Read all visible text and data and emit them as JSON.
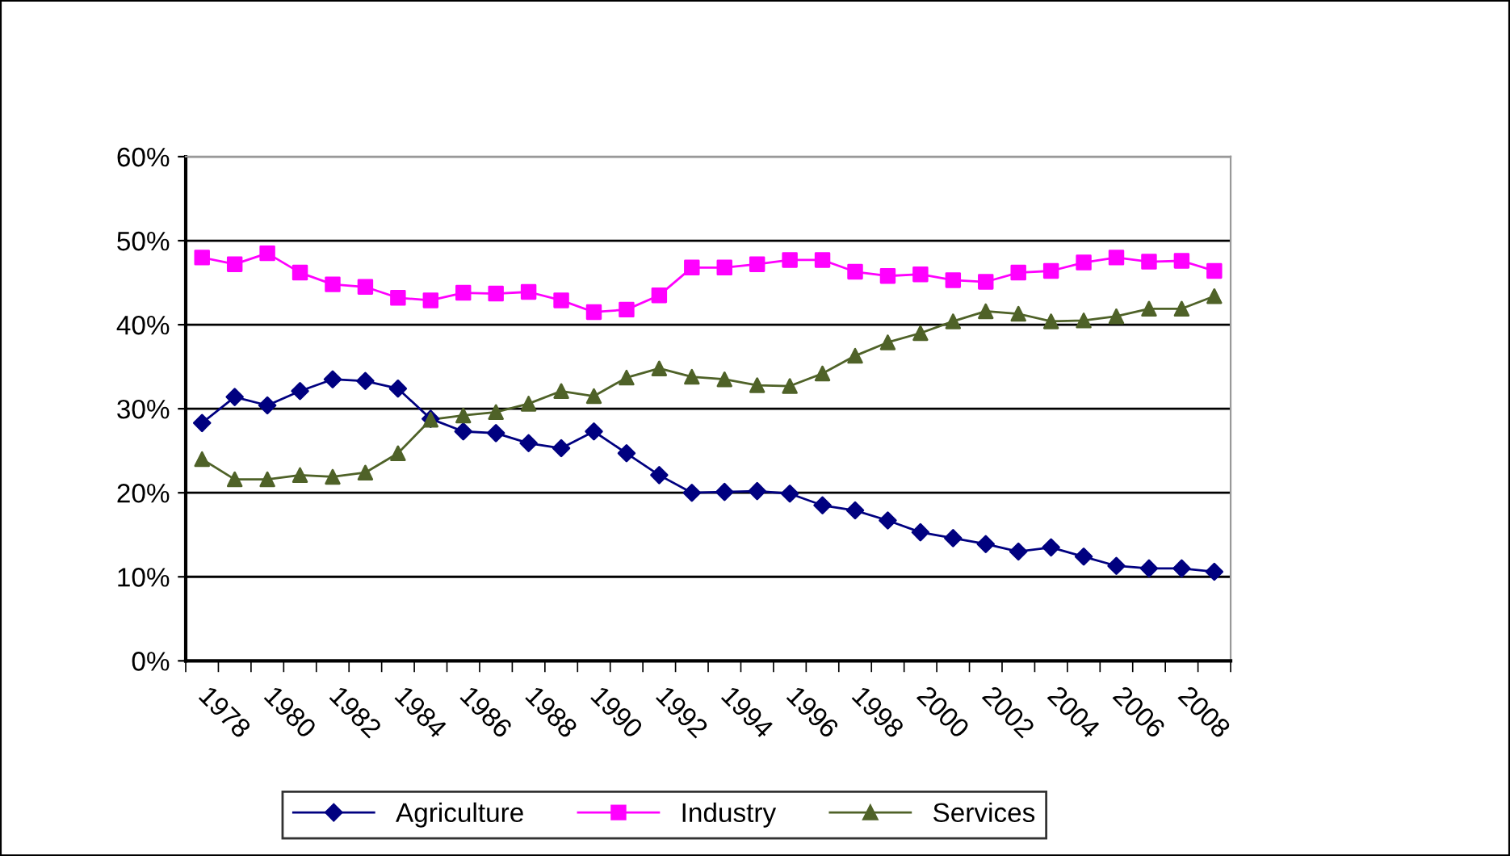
{
  "chart_data": {
    "type": "line",
    "categories": [
      "1978",
      null,
      "1980",
      null,
      "1982",
      null,
      "1984",
      null,
      "1986",
      null,
      "1988",
      null,
      "1990",
      null,
      "1992",
      null,
      "1994",
      null,
      "1996",
      null,
      "1998",
      null,
      "2000",
      null,
      "2002",
      null,
      "2004",
      null,
      "2006",
      null,
      "2008",
      null
    ],
    "series": [
      {
        "name": "Agriculture",
        "color": "#000080",
        "marker": "diamond",
        "values": [
          28.3,
          31.4,
          30.4,
          32.1,
          33.5,
          33.3,
          32.4,
          28.8,
          27.3,
          27.1,
          25.9,
          25.3,
          27.3,
          24.7,
          22.1,
          20.0,
          20.1,
          20.2,
          19.9,
          18.5,
          17.9,
          16.7,
          15.3,
          14.6,
          13.9,
          13.0,
          13.5,
          12.4,
          11.3,
          11.0,
          11.0,
          10.6
        ]
      },
      {
        "name": "Industry",
        "color": "#ff00ff",
        "marker": "square",
        "values": [
          48.0,
          47.2,
          48.5,
          46.2,
          44.8,
          44.5,
          43.2,
          42.9,
          43.8,
          43.7,
          43.9,
          42.9,
          41.5,
          41.8,
          43.5,
          46.8,
          46.8,
          47.2,
          47.7,
          47.7,
          46.3,
          45.8,
          46.0,
          45.3,
          45.1,
          46.2,
          46.4,
          47.4,
          48.0,
          47.5,
          47.6,
          46.4
        ]
      },
      {
        "name": "Services",
        "color": "#4f6228",
        "marker": "triangle",
        "values": [
          24.0,
          21.6,
          21.6,
          22.1,
          21.9,
          22.4,
          24.7,
          28.7,
          29.2,
          29.6,
          30.6,
          32.1,
          31.5,
          33.7,
          34.8,
          33.8,
          33.5,
          32.8,
          32.7,
          34.2,
          36.3,
          37.9,
          39.0,
          40.4,
          41.6,
          41.3,
          40.4,
          40.5,
          41.0,
          41.9,
          41.9,
          43.4
        ]
      }
    ],
    "ylim": [
      0,
      60
    ],
    "yticks": [
      {
        "value": 0,
        "label": "0%"
      },
      {
        "value": 10,
        "label": "10%"
      },
      {
        "value": 20,
        "label": "20%"
      },
      {
        "value": 30,
        "label": "30%"
      },
      {
        "value": 40,
        "label": "40%"
      },
      {
        "value": 50,
        "label": "50%"
      },
      {
        "value": 60,
        "label": "60%"
      }
    ],
    "grid": "y",
    "legend": "bottom",
    "line_style": "solid"
  }
}
